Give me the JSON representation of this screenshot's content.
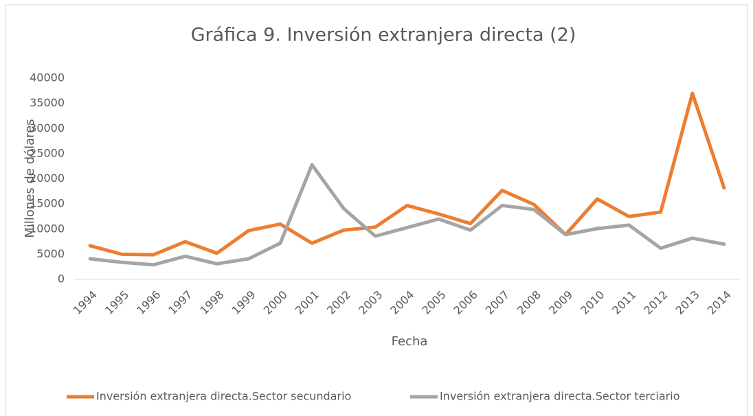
{
  "chart_data": {
    "type": "line",
    "title": "Gráfica 9. Inversión extranjera directa (2)",
    "x_label": "Fecha",
    "y_label": "Millones de dólares",
    "categories": [
      "1994",
      "1995",
      "1996",
      "1997",
      "1998",
      "1999",
      "2000",
      "2001",
      "2002",
      "2003",
      "2004",
      "2005",
      "2006",
      "2007",
      "2008",
      "2009",
      "2010",
      "2011",
      "2012",
      "2013",
      "2014"
    ],
    "series": [
      {
        "name": "Inversión extranjera directa.Sector secundario",
        "color": "#ed7d31",
        "values": [
          6700,
          5000,
          4900,
          7500,
          5200,
          9700,
          11000,
          7200,
          9800,
          10400,
          14700,
          13000,
          11100,
          17700,
          14900,
          8900,
          16000,
          12500,
          13400,
          37000,
          18200
        ]
      },
      {
        "name": "Inversión extranjera directa.Sector terciario",
        "color": "#a5a5a5",
        "values": [
          4100,
          3400,
          2900,
          4600,
          3100,
          4100,
          7200,
          22800,
          14100,
          8600,
          10300,
          12000,
          9800,
          14700,
          13900,
          8900,
          10100,
          10800,
          6200,
          8200,
          7000
        ]
      }
    ],
    "ylim": [
      0,
      40000
    ],
    "yticks": [
      0,
      5000,
      10000,
      15000,
      20000,
      25000,
      30000,
      35000,
      40000
    ],
    "grid": false,
    "legend": "bottom"
  }
}
